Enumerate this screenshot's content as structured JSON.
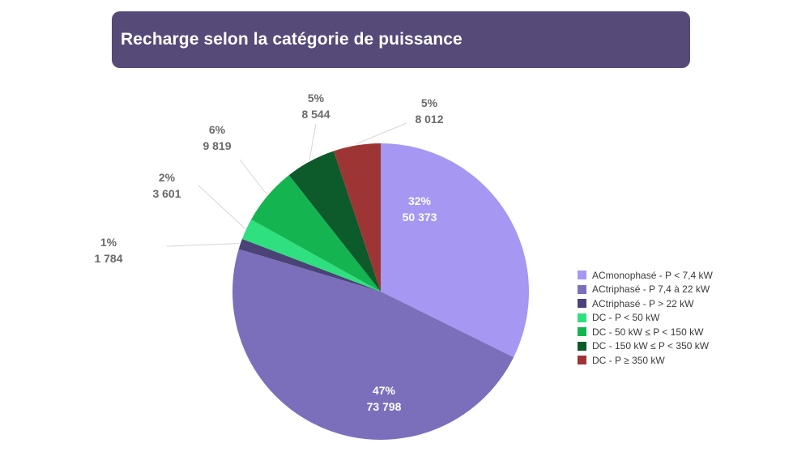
{
  "title": "Recharge selon la catégorie de puissance",
  "chart_data": {
    "type": "pie",
    "title": "Recharge selon la catégorie de puissance",
    "slices": [
      {
        "name": "ACmonophasé - P < 7,4 kW",
        "value": 50373,
        "percent": "32%",
        "value_label": "50 373",
        "color": "#a597f2"
      },
      {
        "name": "ACtriphasé - P 7,4 à 22 kW",
        "value": 73798,
        "percent": "47%",
        "value_label": "73 798",
        "color": "#7b6fbc"
      },
      {
        "name": "ACtriphasé - P > 22 kW",
        "value": 1784,
        "percent": "1%",
        "value_label": "1 784",
        "color": "#4b4277"
      },
      {
        "name": "DC - P < 50 kW",
        "value": 3601,
        "percent": "2%",
        "value_label": "3 601",
        "color": "#2ee07f"
      },
      {
        "name": "DC - 50 kW ≤ P < 150 kW",
        "value": 9819,
        "percent": "6%",
        "value_label": "9 819",
        "color": "#14b550"
      },
      {
        "name": "DC - 150 kW  ≤ P < 350 kW",
        "value": 8544,
        "percent": "5%",
        "value_label": "8 544",
        "color": "#0d5a2b"
      },
      {
        "name": "DC - P ≥ 350 kW",
        "value": 8012,
        "percent": "5%",
        "value_label": "8 012",
        "color": "#9e3535"
      }
    ],
    "legend_position": "right",
    "start_angle": "12 o'clock, clockwise"
  }
}
